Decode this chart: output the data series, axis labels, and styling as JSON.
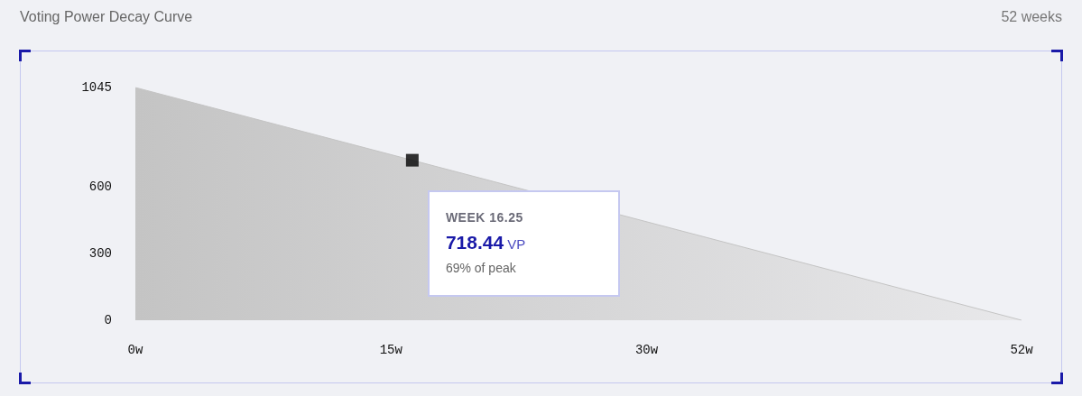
{
  "chart_data": {
    "type": "area",
    "title": "Voting Power Decay Curve",
    "subtitle": "52 weeks",
    "series": [
      {
        "color": "#c4c4c4",
        "x": [
          0,
          52
        ],
        "values": [
          1045,
          0
        ]
      },
      {
        "type": "scatter",
        "color": "#000000",
        "marker": "square",
        "x": [
          16.25
        ],
        "values": [
          718.44
        ]
      }
    ],
    "xlim": [
      0,
      52
    ],
    "xticks": [
      {
        "value": 0,
        "label": "0w"
      },
      {
        "value": 15,
        "label": "15w"
      },
      {
        "value": 30,
        "label": "30w"
      },
      {
        "value": 52,
        "label": "52w"
      }
    ],
    "ylim": [
      0,
      1045
    ],
    "yticks": [
      0,
      300,
      600,
      1045
    ],
    "annotations": [
      "WEEK 16.25",
      "718.44 VP",
      "69% of peak"
    ]
  }
}
